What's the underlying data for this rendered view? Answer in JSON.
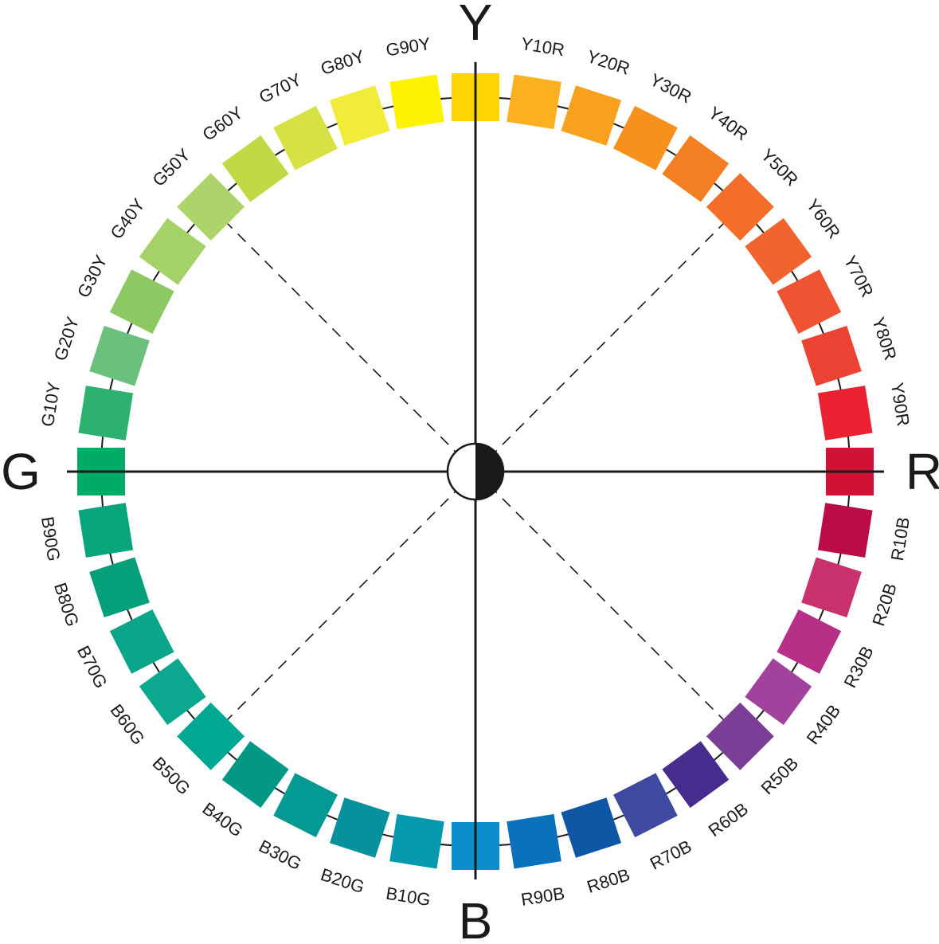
{
  "axes": {
    "top": "Y",
    "right": "R",
    "bottom": "B",
    "left": "G"
  },
  "hues": [
    {
      "label": "Y",
      "color": "#FFD500",
      "show_label": false
    },
    {
      "label": "Y10R",
      "color": "#FBB11F"
    },
    {
      "label": "Y20R",
      "color": "#F9A11C"
    },
    {
      "label": "Y30R",
      "color": "#F6911E"
    },
    {
      "label": "Y40R",
      "color": "#F47F22"
    },
    {
      "label": "Y50R",
      "color": "#F26E29"
    },
    {
      "label": "Y60R",
      "color": "#F1632F"
    },
    {
      "label": "Y70R",
      "color": "#EF5334"
    },
    {
      "label": "Y80R",
      "color": "#EC4233"
    },
    {
      "label": "Y90R",
      "color": "#EA2131"
    },
    {
      "label": "R",
      "color": "#D11236",
      "show_label": false
    },
    {
      "label": "R10B",
      "color": "#BA0C49"
    },
    {
      "label": "R20B",
      "color": "#C8316B"
    },
    {
      "label": "R30B",
      "color": "#B53086"
    },
    {
      "label": "R40B",
      "color": "#A2429C"
    },
    {
      "label": "R50B",
      "color": "#7A3E97"
    },
    {
      "label": "R60B",
      "color": "#452C8D"
    },
    {
      "label": "R70B",
      "color": "#3E4A9F"
    },
    {
      "label": "R80B",
      "color": "#0E57A5"
    },
    {
      "label": "R90B",
      "color": "#0A72BB"
    },
    {
      "label": "B",
      "color": "#0A8FCB",
      "show_label": false
    },
    {
      "label": "B10G",
      "color": "#0599B0"
    },
    {
      "label": "B20G",
      "color": "#06919C"
    },
    {
      "label": "B30G",
      "color": "#049A93"
    },
    {
      "label": "B40G",
      "color": "#029884"
    },
    {
      "label": "B50G",
      "color": "#00A892"
    },
    {
      "label": "B60G",
      "color": "#0BA78F"
    },
    {
      "label": "B70G",
      "color": "#0BA68A"
    },
    {
      "label": "B80G",
      "color": "#05A07A"
    },
    {
      "label": "B90G",
      "color": "#07A57C"
    },
    {
      "label": "G",
      "color": "#00AB67",
      "show_label": false
    },
    {
      "label": "G10Y",
      "color": "#2DB170"
    },
    {
      "label": "G20Y",
      "color": "#6CC07D"
    },
    {
      "label": "G30Y",
      "color": "#8CC962"
    },
    {
      "label": "G40Y",
      "color": "#A4D168"
    },
    {
      "label": "G50Y",
      "color": "#ADD46A"
    },
    {
      "label": "G60Y",
      "color": "#C0DA45"
    },
    {
      "label": "G70Y",
      "color": "#D6E244"
    },
    {
      "label": "G80Y",
      "color": "#F1EB39"
    },
    {
      "label": "G90Y",
      "color": "#FDF200"
    }
  ]
}
